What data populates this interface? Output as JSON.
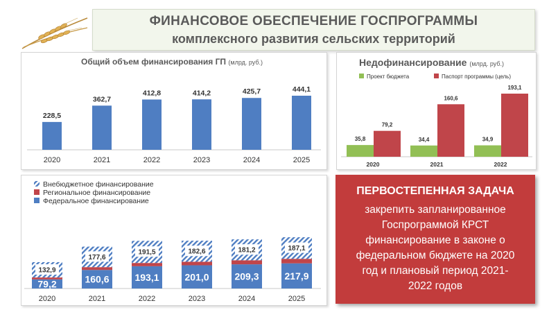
{
  "header": {
    "title_line1": "ФИНАНСОВОЕ ОБЕСПЕЧЕНИЕ ГОСПРОГРАММЫ",
    "title_line2": "комплексного развития сельских территорий"
  },
  "colors": {
    "blue": "#4f7ec2",
    "red": "#c0454a",
    "green": "#92bf55",
    "task_bg": "#c23c3c",
    "header_bg": "#f2f6ec"
  },
  "icons": {
    "logo": "wheat-icon"
  },
  "chart_data": [
    {
      "type": "bar",
      "title": "Общий объем финансирования ГП",
      "unit": "(млрд. руб.)",
      "categories": [
        "2020",
        "2021",
        "2022",
        "2023",
        "2024",
        "2025"
      ],
      "values": [
        228.5,
        362.7,
        412.8,
        414.2,
        425.7,
        444.1
      ],
      "labels": [
        "228,5",
        "362,7",
        "412,8",
        "414,2",
        "425,7",
        "444,1"
      ],
      "ylim": [
        0,
        500
      ],
      "grid": false
    },
    {
      "type": "bar",
      "title": "Недофинансирование",
      "unit": "(млрд. руб.)",
      "legend_position": "top",
      "categories": [
        "2020",
        "2021",
        "2022"
      ],
      "series": [
        {
          "name": "Проект бюджета",
          "color": "#92bf55",
          "values": [
            35.8,
            34.4,
            34.9
          ],
          "labels": [
            "35,8",
            "34,4",
            "34,9"
          ]
        },
        {
          "name": "Паспорт программы (цель)",
          "color": "#c0454a",
          "values": [
            79.2,
            160.6,
            193.1
          ],
          "labels": [
            "79,2",
            "160,6",
            "193,1"
          ]
        }
      ],
      "ylim": [
        0,
        210
      ],
      "grid": false
    },
    {
      "type": "bar",
      "stacked": true,
      "legend_position": "top-left",
      "categories": [
        "2020",
        "2021",
        "2022",
        "2023",
        "2024",
        "2025"
      ],
      "series": [
        {
          "name": "Федеральное финансирование",
          "color": "#4f7ec2",
          "pattern": "solid",
          "values": [
            79.2,
            160.6,
            193.1,
            201.0,
            209.3,
            217.9
          ],
          "labels": [
            "79,2",
            "160,6",
            "193,1",
            "201,0",
            "209,3",
            "217,9"
          ]
        },
        {
          "name": "Региональное финансирование",
          "color": "#c0454a",
          "pattern": "solid",
          "values": [
            16.4,
            24.5,
            28.2,
            30.6,
            35.2,
            39.1
          ]
        },
        {
          "name": "Внебюджетное финансирование",
          "color": "#4f7ec2",
          "pattern": "hatched",
          "values": [
            132.9,
            177.6,
            191.5,
            182.6,
            181.2,
            187.1
          ],
          "labels": [
            "132,9",
            "177,6",
            "191,5",
            "182,6",
            "181,2",
            "187,1"
          ]
        }
      ],
      "ylim": [
        0,
        460
      ],
      "grid": false
    }
  ],
  "task": {
    "heading": "ПЕРВОСТЕПЕННАЯ ЗАДАЧА",
    "lines": [
      "закрепить запланированное",
      "Госпрограммой КРСТ",
      "финансирование в законе о",
      "федеральном бюджете на 2020",
      "год и плановый период  2021-",
      "2022 годов"
    ]
  }
}
